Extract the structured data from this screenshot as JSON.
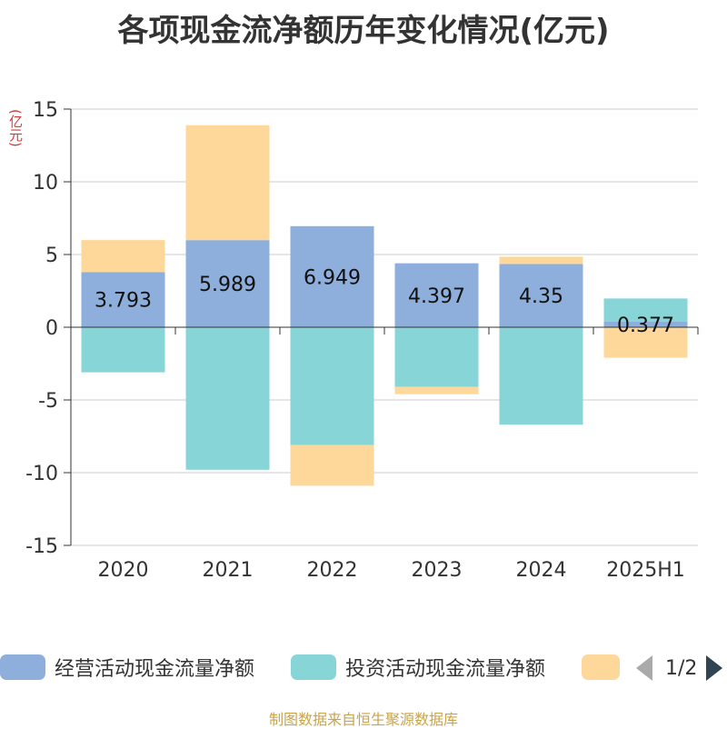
{
  "title": "各项现金流净额历年变化情况(亿元)",
  "unit_label": "(亿元)",
  "source": "制图数据来自恒生聚源数据库",
  "legend": {
    "items": [
      {
        "label": "经营活动现金流量净额",
        "color": "#8eaedb"
      },
      {
        "label": "投资活动现金流量净额",
        "color": "#88d5d8"
      },
      {
        "label": "",
        "color": "#fdd89a"
      }
    ],
    "page": "1/2"
  },
  "chart_data": {
    "type": "bar",
    "stacked": true,
    "categories": [
      "2020",
      "2021",
      "2022",
      "2023",
      "2024",
      "2025H1"
    ],
    "ylim": [
      -15,
      15
    ],
    "yticks": [
      15,
      10,
      5,
      0,
      -5,
      -10,
      -15
    ],
    "series": [
      {
        "name": "经营活动现金流量净额",
        "color": "#8eaedb",
        "values": [
          3.793,
          5.989,
          6.949,
          4.397,
          4.35,
          0.377
        ],
        "labels": [
          "3.793",
          "5.989",
          "6.949",
          "4.397",
          "4.35",
          "0.377"
        ]
      },
      {
        "name": "投资活动现金流量净额",
        "color": "#88d5d8",
        "values": [
          -3.1,
          -9.8,
          -8.1,
          -4.1,
          -6.7,
          1.6
        ]
      },
      {
        "name": "",
        "color": "#fdd89a",
        "values": [
          2.2,
          7.9,
          -2.8,
          -0.5,
          0.5,
          -2.1
        ]
      }
    ],
    "grid": true,
    "legend_position": "bottom"
  }
}
